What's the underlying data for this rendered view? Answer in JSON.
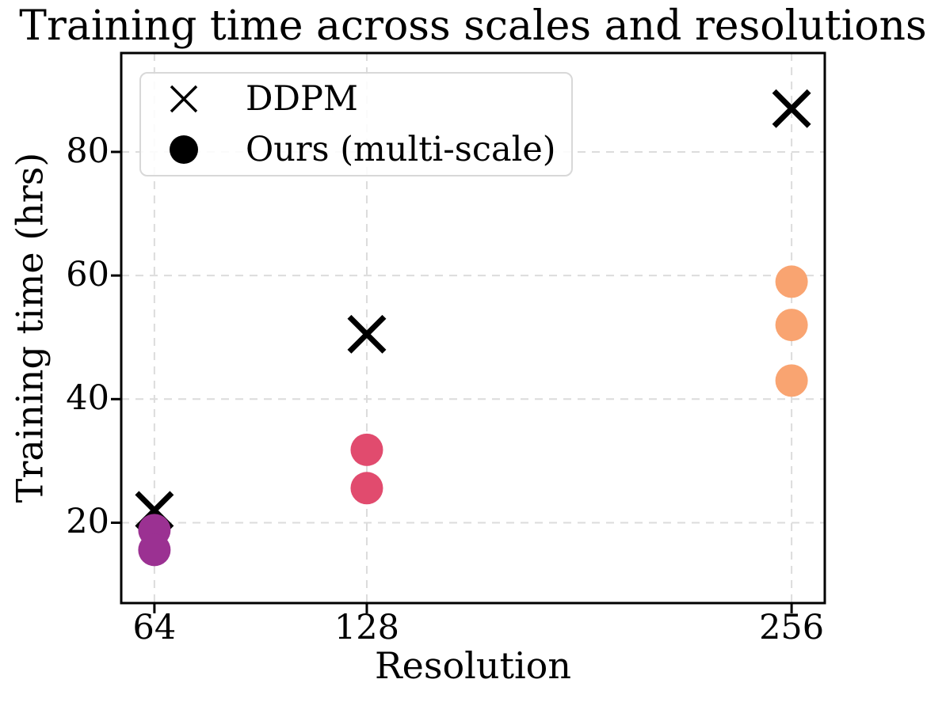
{
  "chart_data": {
    "type": "scatter",
    "title": "Training time across scales and resolutions",
    "xlabel": "Resolution",
    "ylabel": "Training time (hrs)",
    "xticks": [
      64,
      128,
      256
    ],
    "yticks": [
      20,
      40,
      60,
      80
    ],
    "xlim": [
      54,
      266
    ],
    "ylim": [
      7,
      96
    ],
    "grid": true,
    "legend": {
      "position": "upper left",
      "entries": [
        "DDPM",
        "Ours (multi-scale)"
      ]
    },
    "series": [
      {
        "name": "DDPM",
        "marker": "x",
        "color": "#000000",
        "points": [
          {
            "x": 64,
            "y": 22
          },
          {
            "x": 128,
            "y": 50.5
          },
          {
            "x": 256,
            "y": 87
          }
        ]
      },
      {
        "name": "Ours (multi-scale)",
        "marker": "circle",
        "color": "#9b3192",
        "points": [
          {
            "x": 64,
            "y": 18.8,
            "color": "#9b3192"
          },
          {
            "x": 64,
            "y": 15.6,
            "color": "#9b3192"
          },
          {
            "x": 128,
            "y": 31.8,
            "color": "#e14b6e"
          },
          {
            "x": 128,
            "y": 25.6,
            "color": "#e14b6e"
          },
          {
            "x": 256,
            "y": 59,
            "color": "#f9a471"
          },
          {
            "x": 256,
            "y": 52,
            "color": "#f9a471"
          },
          {
            "x": 256,
            "y": 43,
            "color": "#f9a471"
          }
        ]
      }
    ],
    "colors": {
      "ddpm": "#000000",
      "ours_64": "#9b3192",
      "ours_128": "#e14b6e",
      "ours_256": "#f9a471",
      "grid": "#dcdcdc",
      "axes": "#000000",
      "legend_border": "#d8d8d8",
      "background": "#ffffff"
    }
  }
}
